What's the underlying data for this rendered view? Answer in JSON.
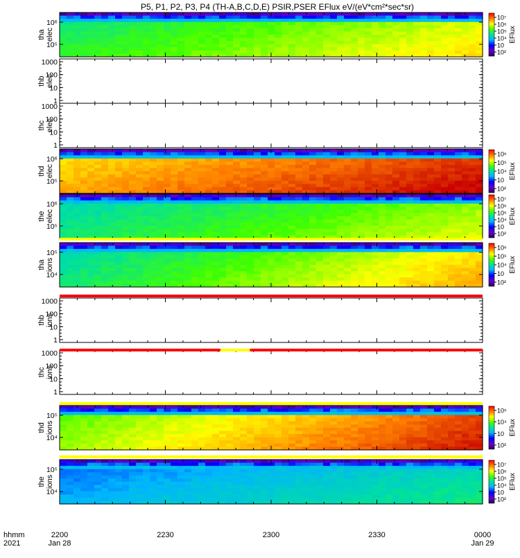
{
  "title": "P5, P1, P2, P3, P4 (TH-A,B,C,D,E) PSIR,PSER EFlux eV/(eV*cm²*sec*sr)",
  "chart_data": {
    "type": "heatmap",
    "xlabel_rows": [
      "hhmm",
      "2021"
    ],
    "x_ticks": [
      {
        "time": "2200",
        "date": "Jan 28"
      },
      {
        "time": "2230",
        "date": ""
      },
      {
        "time": "2300",
        "date": ""
      },
      {
        "time": "2330",
        "date": ""
      },
      {
        "time": "0000",
        "date": "Jan 29"
      }
    ],
    "panels": [
      {
        "label1": "tha",
        "label2": "elec",
        "kind": "spectrogram",
        "yticks": [
          "10⁶",
          "10⁵"
        ],
        "yexp": [
          "6",
          "5"
        ],
        "colorbar": [
          "10⁷",
          "10⁶",
          "10⁵",
          "10⁴",
          "10⁳",
          "10²"
        ],
        "cb_label": "EFlux",
        "levels": {
          "left": 0.55,
          "right": 0.75
        }
      },
      {
        "label1": "thb",
        "label2": "elec",
        "kind": "empty",
        "yticks": [
          "1000",
          "100",
          "10",
          "1"
        ]
      },
      {
        "label1": "thc",
        "label2": "elec",
        "kind": "empty",
        "yticks": [
          "1000",
          "100",
          "10",
          "1"
        ]
      },
      {
        "label1": "thd",
        "label2": "elec",
        "kind": "spectrogram",
        "yticks": [
          "10⁶",
          "10⁵"
        ],
        "colorbar": [
          "10⁶",
          "10⁵",
          "10⁴",
          "10⁳",
          "10²"
        ],
        "cb_label": "EFlux",
        "levels": {
          "left": 0.8,
          "right": 0.97
        }
      },
      {
        "label1": "the",
        "label2": "elec",
        "kind": "spectrogram",
        "yticks": [
          "10⁶",
          "10⁵"
        ],
        "colorbar": [
          "10⁷",
          "10⁶",
          "10⁵",
          "10⁴",
          "10⁳",
          "10²"
        ],
        "cb_label": "EFlux",
        "levels": {
          "left": 0.5,
          "right": 0.7
        }
      },
      {
        "label1": "tha",
        "label2": "ions",
        "kind": "spectrogram",
        "yticks": [
          "10⁵",
          "10⁴"
        ],
        "colorbar": [
          "10⁶",
          "10⁵",
          "10⁴",
          "10⁳",
          "10²"
        ],
        "cb_label": "EFlux",
        "levels": {
          "left": 0.5,
          "right": 0.8
        }
      },
      {
        "label1": "thb",
        "label2": "ions",
        "kind": "empty",
        "yticks": [
          "1000",
          "100",
          "10",
          "1"
        ]
      },
      {
        "label1": "thc",
        "label2": "ions",
        "kind": "empty",
        "yticks": [
          "1000",
          "100",
          "10",
          "1"
        ]
      },
      {
        "label1": "thd",
        "label2": "ions",
        "kind": "spectrogram",
        "yticks": [
          "10⁵",
          "10⁴"
        ],
        "colorbar": [
          "10⁵",
          "10⁴",
          "10⁳",
          "10²"
        ],
        "cb_label": "EFlux",
        "levels": {
          "left": 0.65,
          "right": 0.95
        }
      },
      {
        "label1": "the",
        "label2": "ions",
        "kind": "spectrogram",
        "yticks": [
          "10⁵",
          "10⁴"
        ],
        "colorbar": [
          "10⁷",
          "10⁶",
          "10⁵",
          "10⁴",
          "10⁳",
          "10²"
        ],
        "cb_label": "EFlux",
        "levels": {
          "left": 0.35,
          "right": 0.5
        }
      }
    ]
  }
}
